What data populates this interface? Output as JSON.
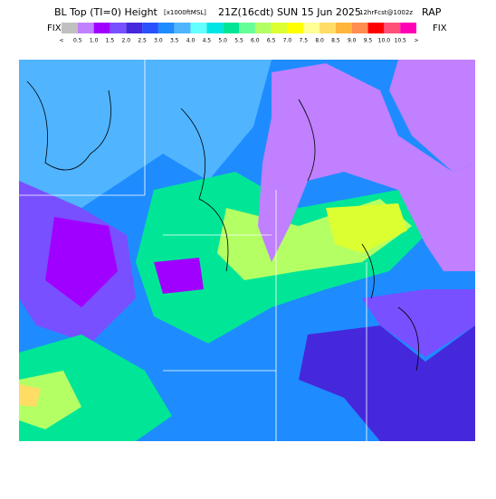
{
  "header": {
    "title_main": "BL Top (TI=0) Height",
    "units": "[x1000ftMSL]",
    "valid_time": "21Z(16cdt) SUN 15 Jun 2025",
    "forecast": "12hrFcst@1002z",
    "model": "RAP"
  },
  "legend": {
    "left_label": "FIX",
    "right_label": "FIX",
    "colors": [
      "#c0c0c0",
      "#c080ff",
      "#a000ff",
      "#7850ff",
      "#4628dc",
      "#2850ff",
      "#1e8cff",
      "#50b4ff",
      "#64ffff",
      "#00e6e6",
      "#00e696",
      "#64ff96",
      "#b4ff64",
      "#dcff32",
      "#ffff00",
      "#ffff96",
      "#ffdc64",
      "#ffb43c",
      "#ff8c50",
      "#ff0000",
      "#ff5078",
      "#ff00b4"
    ],
    "labels": [
      "<",
      "0.5",
      "1.0",
      "1.5",
      "2.0",
      "2.5",
      "3.0",
      "3.5",
      "4.0",
      "4.5",
      "5.0",
      "5.5",
      "6.0",
      "6.5",
      "7.0",
      "7.5",
      "8.0",
      "8.5",
      "9.0",
      "9.5",
      "10.0",
      "10.5",
      ">"
    ]
  }
}
